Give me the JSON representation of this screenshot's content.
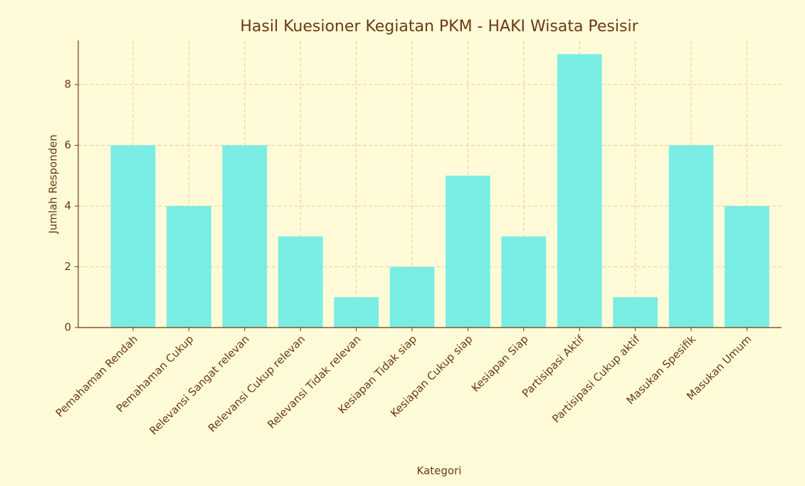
{
  "chart_data": {
    "type": "bar",
    "title": "Hasil Kuesioner Kegiatan PKM - HAKI Wisata Pesisir",
    "xlabel": "Kategori",
    "ylabel": "Jumlah Responden",
    "categories": [
      "Pemahaman Rendah",
      "Pemahaman Cukup",
      "Relevansi Sangat relevan",
      "Relevansi Cukup relevan",
      "Relevansi Tidak relevan",
      "Kesiapan Tidak siap",
      "Kesiapan Cukup siap",
      "Kesiapan Siap",
      "Partisipasi Aktif",
      "Partisipasi Cukup aktif",
      "Masukan Spesifik",
      "Masukan Umum"
    ],
    "values": [
      6,
      4,
      6,
      3,
      1,
      2,
      5,
      3,
      9,
      1,
      6,
      4
    ],
    "color": "#79ede4",
    "ylim": [
      0,
      9.45
    ],
    "yticks": [
      0,
      2,
      4,
      6,
      8
    ],
    "grid": true
  }
}
